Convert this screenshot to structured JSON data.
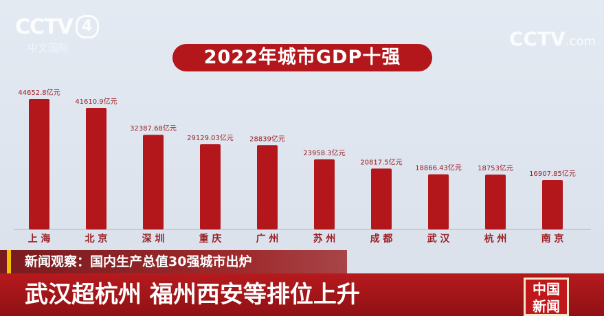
{
  "logo_left": {
    "name": "CCTV",
    "channel": "4",
    "subtitle": "中文国际"
  },
  "logo_right": {
    "name": "CCTV",
    "suffix": ".com"
  },
  "chart_data": {
    "type": "bar",
    "title": "2022年城市GDP十强",
    "categories": [
      "上 海",
      "北 京",
      "深 圳",
      "重 庆",
      "广 州",
      "苏 州",
      "成 都",
      "武 汉",
      "杭 州",
      "南 京"
    ],
    "values": [
      44652.8,
      41610.9,
      32387.68,
      29129.03,
      28839,
      23958.3,
      20817.5,
      18866.43,
      18753,
      16907.85
    ],
    "value_labels": [
      "44652.8亿元",
      "41610.9亿元",
      "32387.68亿元",
      "29129.03亿元",
      "28839亿元",
      "23958.3亿元",
      "20817.5亿元",
      "18866.43亿元",
      "18753亿元",
      "16907.85亿元"
    ],
    "unit": "亿元",
    "bar_color": "#b3171c",
    "label_color": "#9a1d22"
  },
  "ticker": {
    "headline_small": "新闻观察：国内生产总值30强城市出炉",
    "headline_large": "武汉超杭州  福州西安等排位上升"
  },
  "brand": {
    "line1": "中国",
    "line2": "新闻"
  }
}
